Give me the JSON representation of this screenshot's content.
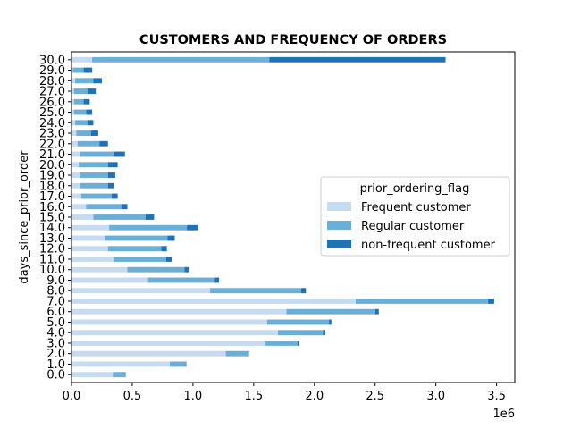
{
  "chart_data": {
    "type": "bar",
    "orientation": "horizontal",
    "stacked": true,
    "title": "CUSTOMERS AND FREQUENCY OF ORDERS",
    "xlabel": "",
    "ylabel": "days_since_prior_order",
    "x_scale_note": "1e6",
    "xlim": [
      0,
      3.65
    ],
    "x_ticks": [
      0.0,
      0.5,
      1.0,
      1.5,
      2.0,
      2.5,
      3.0,
      3.5
    ],
    "x_tick_labels": [
      "0.0",
      "0.5",
      "1.0",
      "1.5",
      "2.0",
      "2.5",
      "3.0",
      "3.5"
    ],
    "grid": false,
    "legend_title": "prior_ordering_flag",
    "legend_placement": "center-right",
    "categories": [
      "0.0",
      "1.0",
      "2.0",
      "3.0",
      "4.0",
      "5.0",
      "6.0",
      "7.0",
      "8.0",
      "9.0",
      "10.0",
      "11.0",
      "12.0",
      "13.0",
      "14.0",
      "15.0",
      "16.0",
      "17.0",
      "18.0",
      "19.0",
      "20.0",
      "21.0",
      "22.0",
      "23.0",
      "24.0",
      "25.0",
      "26.0",
      "27.0",
      "28.0",
      "29.0",
      "30.0"
    ],
    "series": [
      {
        "name": "Frequent customer",
        "color": "#c6dbef",
        "values": [
          0.34,
          0.81,
          1.27,
          1.59,
          1.7,
          1.61,
          1.77,
          2.34,
          1.14,
          0.63,
          0.46,
          0.35,
          0.3,
          0.28,
          0.31,
          0.18,
          0.12,
          0.08,
          0.07,
          0.07,
          0.06,
          0.07,
          0.05,
          0.04,
          0.03,
          0.02,
          0.02,
          0.02,
          0.03,
          0.01,
          0.17
        ]
      },
      {
        "name": "Regular customer",
        "color": "#6baed6",
        "values": [
          0.1,
          0.13,
          0.18,
          0.27,
          0.37,
          0.51,
          0.73,
          1.09,
          0.75,
          0.55,
          0.47,
          0.43,
          0.44,
          0.51,
          0.64,
          0.43,
          0.29,
          0.25,
          0.23,
          0.23,
          0.24,
          0.28,
          0.18,
          0.12,
          0.1,
          0.1,
          0.08,
          0.11,
          0.15,
          0.09,
          1.46
        ]
      },
      {
        "name": "non-frequent customer",
        "color": "#2171b5",
        "values": [
          0.005,
          0.005,
          0.01,
          0.015,
          0.02,
          0.02,
          0.03,
          0.05,
          0.04,
          0.035,
          0.035,
          0.045,
          0.045,
          0.06,
          0.09,
          0.07,
          0.05,
          0.05,
          0.05,
          0.06,
          0.08,
          0.09,
          0.07,
          0.06,
          0.05,
          0.05,
          0.05,
          0.07,
          0.07,
          0.07,
          1.45
        ]
      }
    ]
  }
}
